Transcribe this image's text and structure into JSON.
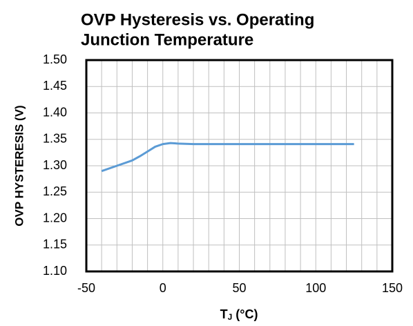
{
  "chart_data": {
    "type": "line",
    "title": [
      "OVP Hysteresis vs. Operating",
      "Junction Temperature"
    ],
    "xlabel": {
      "main": "T",
      "sub": "J",
      "rest": " (°C)"
    },
    "ylabel": "OVP HYSTERESIS (V)",
    "x": [
      -40,
      -30,
      -20,
      -15,
      -10,
      -5,
      0,
      5,
      10,
      20,
      30,
      50,
      75,
      100,
      125
    ],
    "series": [
      {
        "name": "OVP Hysteresis",
        "color": "#5b9bd5",
        "values": [
          1.29,
          1.3,
          1.31,
          1.318,
          1.327,
          1.336,
          1.341,
          1.343,
          1.342,
          1.341,
          1.341,
          1.341,
          1.341,
          1.341,
          1.341
        ]
      }
    ],
    "xlim": [
      -50,
      150
    ],
    "xticks": [
      -50,
      0,
      50,
      100,
      150
    ],
    "xminorticks": [
      -40,
      -30,
      -20,
      -10,
      10,
      20,
      30,
      40,
      60,
      70,
      80,
      90,
      110,
      120,
      130,
      140
    ],
    "ylim": [
      1.1,
      1.5
    ],
    "yticks": [
      {
        "value": 1.1,
        "label": "1.10"
      },
      1.15,
      {
        "value": 1.2,
        "label": "1.20"
      },
      1.25,
      {
        "value": 1.3,
        "label": "1.30"
      },
      1.35,
      {
        "value": 1.4,
        "label": "1.40"
      },
      1.45,
      {
        "value": 1.5,
        "label": "1.50"
      }
    ],
    "grid": true
  }
}
